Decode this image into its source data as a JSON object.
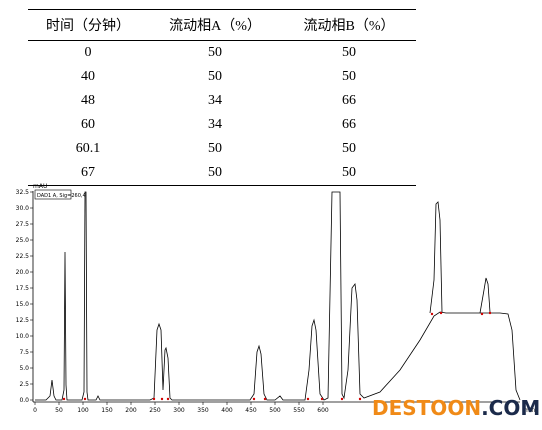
{
  "table": {
    "headers": [
      "时间（分钟）",
      "流动相A（%）",
      "流动相B（%）"
    ],
    "rows": [
      [
        "0",
        "50",
        "50"
      ],
      [
        "40",
        "50",
        "50"
      ],
      [
        "48",
        "34",
        "66"
      ],
      [
        "60",
        "34",
        "66"
      ],
      [
        "60.1",
        "50",
        "50"
      ],
      [
        "67",
        "50",
        "50"
      ]
    ]
  },
  "chromatogram": {
    "y_unit": "mAU",
    "x_unit": "min",
    "y_ticks": [
      "0.0",
      "2.5",
      "5.0",
      "7.5",
      "10.0",
      "12.5",
      "15.0",
      "17.5",
      "20.0",
      "22.5",
      "25.0",
      "27.5",
      "30.0",
      "32.5"
    ],
    "x_ticks": [
      "0",
      "50",
      "100",
      "150",
      "200",
      "250",
      "300",
      "350",
      "400",
      "450",
      "500",
      "550",
      "600"
    ],
    "legend_label": "DAD1 A, Sig=260,4"
  },
  "watermark": {
    "part1": "DESTOON",
    "part2": ".COM"
  }
}
